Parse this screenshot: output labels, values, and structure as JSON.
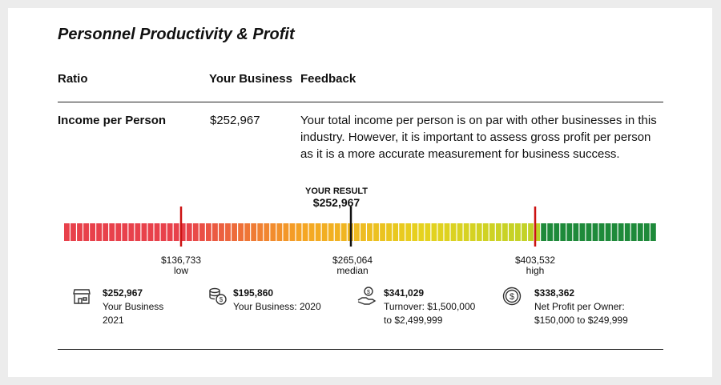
{
  "title": "Personnel Productivity & Profit",
  "table": {
    "headers": {
      "ratio": "Ratio",
      "business": "Your Business",
      "feedback": "Feedback"
    },
    "row": {
      "label": "Income per Person",
      "value": "$252,967",
      "feedback": "Your total income per person is on par with other businesses in this industry. However, it is important to assess gross profit per person as it is a more accurate measurement for business success."
    }
  },
  "gauge": {
    "result_caption": "YOUR RESULT",
    "result_value": "$252,967",
    "low": {
      "value": "$136,733",
      "label": "low"
    },
    "median": {
      "value": "$265,064",
      "label": "median"
    },
    "high": {
      "value": "$403,532",
      "label": "high"
    },
    "colors": {
      "red": "#e8414b",
      "orange": "#f5a623",
      "yellow": "#e6d21e",
      "green": "#1e8a3a",
      "marker_red": "#cc1111",
      "marker_black": "#111111"
    }
  },
  "stats": [
    {
      "icon": "storefront-icon",
      "value": "$252,967",
      "desc1": "Your Business",
      "desc2": "2021"
    },
    {
      "icon": "coins-stack-icon",
      "value": "$195,860",
      "desc1": "Your Business: 2020",
      "desc2": ""
    },
    {
      "icon": "hand-coin-icon",
      "value": "$341,029",
      "desc1": "Turnover: $1,500,000",
      "desc2": "to $2,499,999"
    },
    {
      "icon": "dollar-circle-icon",
      "value": "$338,362",
      "desc1": "Net Profit per Owner:",
      "desc2": "$150,000 to $249,999"
    }
  ]
}
